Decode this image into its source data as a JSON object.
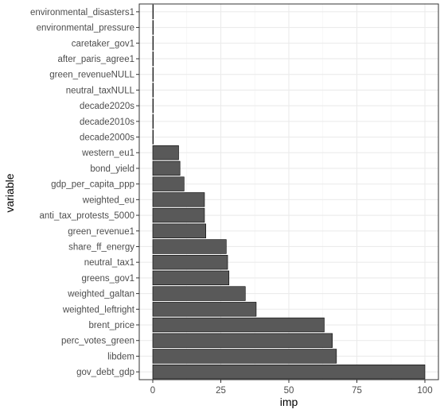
{
  "chart_data": {
    "type": "bar",
    "orientation": "horizontal",
    "xlabel": "imp",
    "ylabel": "variable",
    "xlim": [
      0,
      100
    ],
    "xticks": [
      0,
      25,
      50,
      75,
      100
    ],
    "grid": true,
    "theme": "bw",
    "categories": [
      "environmental_disasters1",
      "environmental_pressure",
      "caretaker_gov1",
      "after_paris_agree1",
      "green_revenueNULL",
      "neutral_taxNULL",
      "decade2020s",
      "decade2010s",
      "decade2000s",
      "western_eu1",
      "bond_yield",
      "gdp_per_capita_ppp",
      "weighted_eu",
      "anti_tax_protests_5000",
      "green_revenue1",
      "share_ff_energy",
      "neutral_tax1",
      "greens_gov1",
      "weighted_galtan",
      "weighted_leftright",
      "brent_price",
      "perc_votes_green",
      "libdem",
      "gov_debt_gdp"
    ],
    "values": [
      0,
      0,
      0,
      0,
      0,
      0,
      0,
      0,
      0,
      9.5,
      10,
      11.5,
      19,
      19,
      19.5,
      27,
      27.5,
      28,
      34,
      38,
      63,
      66,
      67.5,
      100
    ],
    "bar_color": "#595959"
  }
}
